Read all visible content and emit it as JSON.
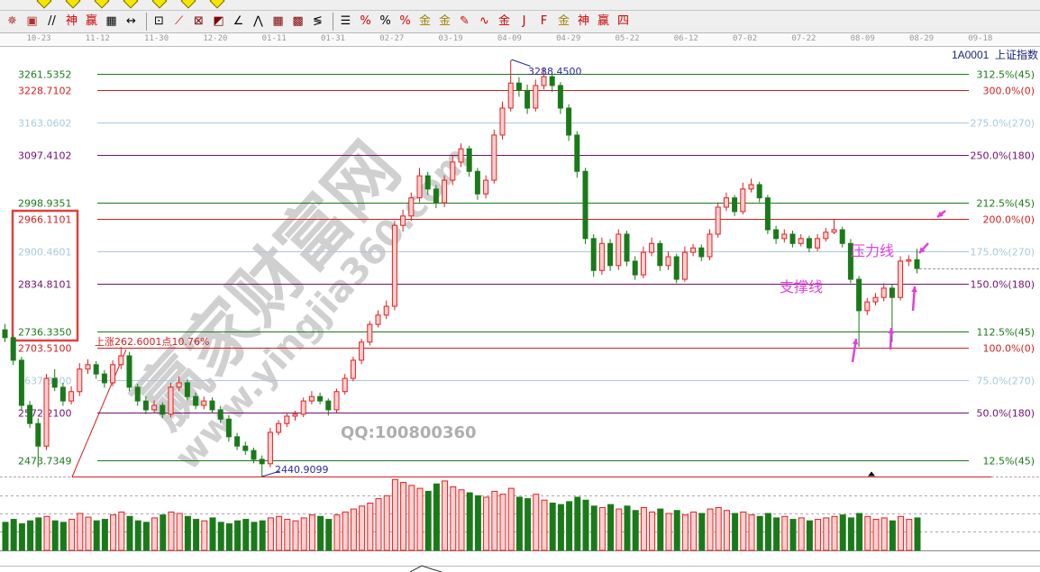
{
  "toolbar": {
    "row1_icons": [
      "pen-icon",
      "diamond-icon",
      "diamond-icon",
      "diamond-icon",
      "diamond-icon",
      "diamond-icon",
      "diamond-icon",
      "diamond-icon",
      "arc-icon",
      "vertical-line-icon",
      "cycle-icon",
      "text-p-icon",
      "box-icon",
      "calendar-icon",
      "chart-icon",
      "window-icon",
      "save-icon",
      "globe-icon",
      "print-icon"
    ],
    "row2_icons": [
      {
        "name": "target-icon",
        "glyph": "✵",
        "color": "#b03030"
      },
      {
        "name": "square-target-icon",
        "glyph": "▣",
        "color": "#b03030"
      },
      {
        "name": "parallel-lines-icon",
        "glyph": "//",
        "color": "#000000"
      },
      {
        "name": "shen-icon",
        "glyph": "神",
        "color": "#d00000"
      },
      {
        "name": "ying-icon",
        "glyph": "赢",
        "color": "#d00000"
      },
      {
        "name": "grid-bars-icon",
        "glyph": "▦",
        "color": "#000000"
      },
      {
        "name": "width-measure-icon",
        "glyph": "↔",
        "color": "#000000"
      },
      {
        "name": "sep",
        "glyph": "",
        "color": ""
      },
      {
        "name": "box-line-icon",
        "glyph": "⊡",
        "color": "#000000"
      },
      {
        "name": "fan-lines-icon",
        "glyph": "⟋",
        "color": "#d00000"
      },
      {
        "name": "gann-box-icon",
        "glyph": "⊠",
        "color": "#800000"
      },
      {
        "name": "gann-fan-icon",
        "glyph": "◩",
        "color": "#800000"
      },
      {
        "name": "angle-icon",
        "glyph": "∠",
        "color": "#000000"
      },
      {
        "name": "wave-icon",
        "glyph": "⋀",
        "color": "#000000"
      },
      {
        "name": "grid-icon",
        "glyph": "▦",
        "color": "#800000"
      },
      {
        "name": "grid-icon-2",
        "glyph": "▩",
        "color": "#800000"
      },
      {
        "name": "speed-lines-icon",
        "glyph": "≶",
        "color": "#000000"
      },
      {
        "name": "sep",
        "glyph": "",
        "color": ""
      },
      {
        "name": "fib-lines-icon",
        "glyph": "☰",
        "color": "#000000"
      },
      {
        "name": "percent-fan-icon",
        "glyph": "%",
        "color": "#d00000"
      },
      {
        "name": "percent-icon",
        "glyph": "%",
        "color": "#000000"
      },
      {
        "name": "percent-lines-icon",
        "glyph": "%",
        "color": "#d00000"
      },
      {
        "name": "gold-circle-icon",
        "glyph": "金",
        "color": "#a08000"
      },
      {
        "name": "gold-lines-icon",
        "glyph": "金",
        "color": "#a08000"
      },
      {
        "name": "pen-fan-icon",
        "glyph": "✎",
        "color": "#d00000"
      },
      {
        "name": "wave-lines-icon",
        "glyph": "∿",
        "color": "#d00000"
      },
      {
        "name": "gold-icon",
        "glyph": "金",
        "color": "#d00000"
      },
      {
        "name": "j-fan-icon",
        "glyph": "J",
        "color": "#d00000"
      },
      {
        "name": "f-fan-icon",
        "glyph": "F",
        "color": "#d00000"
      },
      {
        "name": "gold-fan-icon",
        "glyph": "金",
        "color": "#a08000"
      },
      {
        "name": "shen-fan-icon",
        "glyph": "神",
        "color": "#d00000"
      },
      {
        "name": "ying-fan-icon",
        "glyph": "赢",
        "color": "#d00000"
      },
      {
        "name": "si-fan-icon",
        "glyph": "四",
        "color": "#d00000"
      }
    ]
  },
  "date_axis": [
    "10-23",
    "11-12",
    "11-30",
    "12-20",
    "01-11",
    "01-31",
    "02-27",
    "03-19",
    "04-09",
    "04-29",
    "05-22",
    "06-12",
    "07-02",
    "07-22",
    "08-09",
    "08-29",
    "09-18"
  ],
  "symbol": {
    "code": "1A0001",
    "name": "上证指数"
  },
  "colors": {
    "up": "#e02020",
    "up_fill": "#ffd0d0",
    "down": "#1a7a1a",
    "green": "#1a7a1a",
    "red": "#d02020",
    "light": "#a8c8dc",
    "purple": "#701070",
    "annotation": "#e040e0",
    "peak_label": "#2a2aa0"
  },
  "chart_data": {
    "type": "candlestick",
    "title": "",
    "fib_levels": [
      {
        "price": "3261.5352",
        "value": 3261.5352,
        "label": "312.5%(45)",
        "color": "#1a7a1a"
      },
      {
        "price": "3228.7102",
        "value": 3228.7102,
        "label": "300.0%(0)",
        "color": "#d02020"
      },
      {
        "price": "3163.0602",
        "value": 3163.0602,
        "label": "275.0%(270)",
        "color": "#a8c8dc"
      },
      {
        "price": "3097.4102",
        "value": 3097.4102,
        "label": "250.0%(180)",
        "color": "#701070"
      },
      {
        "price": "2998.9351",
        "value": 2998.9351,
        "label": "212.5%(45)",
        "color": "#1a7a1a"
      },
      {
        "price": "2966.1101",
        "value": 2966.1101,
        "label": "200.0%(0)",
        "color": "#d02020"
      },
      {
        "price": "2900.4601",
        "value": 2900.4601,
        "label": "175.0%(270)",
        "color": "#a8c8dc"
      },
      {
        "price": "2834.8101",
        "value": 2834.8101,
        "label": "150.0%(180)",
        "color": "#701070"
      },
      {
        "price": "2736.3350",
        "value": 2736.335,
        "label": "112.5%(45)",
        "color": "#1a7a1a"
      },
      {
        "price": "2703.5100",
        "value": 2703.51,
        "label": "100.0%(0)",
        "color": "#d02020"
      },
      {
        "price": "2637.8600",
        "value": 2637.86,
        "label": "75.0%(270)",
        "color": "#a8c8dc"
      },
      {
        "price": "2572.2100",
        "value": 2572.21,
        "label": "50.0%(180)",
        "color": "#701070"
      },
      {
        "price": "2473.7349",
        "value": 2473.7349,
        "label": "12.5%(45)",
        "color": "#1a7a1a"
      }
    ],
    "base_level": 2440.9099,
    "low_label": "2440.9099",
    "high_label": "3288.4500",
    "high_value": 3288.45,
    "rise_annotation": "上涨262.6001点10.76%",
    "pressure_label": "压力线",
    "support_label": "支撑线",
    "last_price": 2865,
    "ohlc": [
      [
        2740,
        2752,
        2715,
        2724
      ],
      [
        2724,
        2730,
        2668,
        2678
      ],
      [
        2678,
        2685,
        2575,
        2586
      ],
      [
        2586,
        2595,
        2540,
        2549
      ],
      [
        2549,
        2560,
        2460,
        2503
      ],
      [
        2503,
        2650,
        2495,
        2641
      ],
      [
        2641,
        2660,
        2615,
        2623
      ],
      [
        2623,
        2632,
        2585,
        2595
      ],
      [
        2595,
        2625,
        2588,
        2614
      ],
      [
        2614,
        2672,
        2605,
        2660
      ],
      [
        2660,
        2680,
        2650,
        2669
      ],
      [
        2669,
        2676,
        2640,
        2650
      ],
      [
        2650,
        2658,
        2622,
        2632
      ],
      [
        2632,
        2678,
        2625,
        2669
      ],
      [
        2669,
        2705,
        2660,
        2687
      ],
      [
        2687,
        2695,
        2615,
        2623
      ],
      [
        2623,
        2630,
        2585,
        2595
      ],
      [
        2595,
        2604,
        2568,
        2577
      ],
      [
        2577,
        2596,
        2570,
        2586
      ],
      [
        2586,
        2592,
        2560,
        2568
      ],
      [
        2568,
        2632,
        2562,
        2623
      ],
      [
        2623,
        2645,
        2615,
        2632
      ],
      [
        2632,
        2640,
        2596,
        2604
      ],
      [
        2604,
        2612,
        2578,
        2586
      ],
      [
        2586,
        2604,
        2578,
        2595
      ],
      [
        2595,
        2602,
        2570,
        2577
      ],
      [
        2577,
        2585,
        2550,
        2558
      ],
      [
        2558,
        2566,
        2512,
        2522
      ],
      [
        2522,
        2530,
        2495,
        2503
      ],
      [
        2503,
        2512,
        2485,
        2494
      ],
      [
        2494,
        2500,
        2468,
        2476
      ],
      [
        2476,
        2484,
        2440.91,
        2467
      ],
      [
        2467,
        2540,
        2460,
        2531
      ],
      [
        2531,
        2556,
        2525,
        2549
      ],
      [
        2549,
        2570,
        2542,
        2564
      ],
      [
        2564,
        2575,
        2555,
        2568
      ],
      [
        2568,
        2602,
        2562,
        2595
      ],
      [
        2595,
        2615,
        2588,
        2604
      ],
      [
        2604,
        2612,
        2588,
        2595
      ],
      [
        2595,
        2600,
        2565,
        2577
      ],
      [
        2577,
        2620,
        2570,
        2614
      ],
      [
        2614,
        2650,
        2608,
        2641
      ],
      [
        2641,
        2685,
        2635,
        2678
      ],
      [
        2678,
        2722,
        2670,
        2715
      ],
      [
        2715,
        2758,
        2708,
        2751
      ],
      [
        2751,
        2780,
        2745,
        2770
      ],
      [
        2770,
        2800,
        2762,
        2788
      ],
      [
        2788,
        2962,
        2780,
        2953
      ],
      [
        2953,
        2985,
        2940,
        2972
      ],
      [
        2972,
        3020,
        2962,
        3009
      ],
      [
        3009,
        3070,
        3000,
        3054
      ],
      [
        3054,
        3062,
        3015,
        3027
      ],
      [
        3027,
        3035,
        2988,
        2999
      ],
      [
        2999,
        3055,
        2990,
        3045
      ],
      [
        3045,
        3095,
        3035,
        3082
      ],
      [
        3082,
        3120,
        3072,
        3109
      ],
      [
        3109,
        3115,
        3052,
        3063
      ],
      [
        3063,
        3070,
        3005,
        3017
      ],
      [
        3017,
        3055,
        3008,
        3045
      ],
      [
        3045,
        3148,
        3038,
        3137
      ],
      [
        3137,
        3205,
        3128,
        3192
      ],
      [
        3192,
        3288.45,
        3185,
        3243
      ],
      [
        3243,
        3255,
        3215,
        3228
      ],
      [
        3228,
        3240,
        3180,
        3192
      ],
      [
        3192,
        3250,
        3185,
        3238
      ],
      [
        3238,
        3275,
        3230,
        3256
      ],
      [
        3256,
        3262,
        3225,
        3238
      ],
      [
        3238,
        3245,
        3180,
        3192
      ],
      [
        3192,
        3200,
        3125,
        3137
      ],
      [
        3137,
        3145,
        3050,
        3063
      ],
      [
        3063,
        3070,
        2915,
        2926
      ],
      [
        2926,
        2935,
        2848,
        2861
      ],
      [
        2861,
        2928,
        2852,
        2916
      ],
      [
        2916,
        2925,
        2860,
        2871
      ],
      [
        2871,
        2945,
        2862,
        2935
      ],
      [
        2935,
        2942,
        2870,
        2880
      ],
      [
        2880,
        2890,
        2842,
        2852
      ],
      [
        2852,
        2910,
        2845,
        2898
      ],
      [
        2898,
        2928,
        2890,
        2916
      ],
      [
        2916,
        2922,
        2860,
        2871
      ],
      [
        2871,
        2900,
        2862,
        2889
      ],
      [
        2889,
        2895,
        2835,
        2843
      ],
      [
        2843,
        2910,
        2838,
        2898
      ],
      [
        2898,
        2915,
        2890,
        2907
      ],
      [
        2907,
        2914,
        2880,
        2889
      ],
      [
        2889,
        2945,
        2882,
        2935
      ],
      [
        2935,
        3000,
        2928,
        2990
      ],
      [
        2990,
        3020,
        2982,
        3009
      ],
      [
        3009,
        3015,
        2972,
        2981
      ],
      [
        2981,
        3040,
        2975,
        3027
      ],
      [
        3027,
        3048,
        3020,
        3036
      ],
      [
        3036,
        3042,
        3000,
        3009
      ],
      [
        3009,
        3015,
        2935,
        2944
      ],
      [
        2944,
        2952,
        2915,
        2926
      ],
      [
        2926,
        2945,
        2918,
        2935
      ],
      [
        2935,
        2942,
        2908,
        2916
      ],
      [
        2916,
        2935,
        2910,
        2926
      ],
      [
        2926,
        2932,
        2898,
        2907
      ],
      [
        2907,
        2935,
        2900,
        2926
      ],
      [
        2926,
        2948,
        2920,
        2939
      ],
      [
        2939,
        2965,
        2935,
        2944
      ],
      [
        2944,
        2950,
        2908,
        2916
      ],
      [
        2916,
        2925,
        2835,
        2843
      ],
      [
        2843,
        2850,
        2705,
        2779
      ],
      [
        2779,
        2805,
        2770,
        2797
      ],
      [
        2797,
        2815,
        2790,
        2806
      ],
      [
        2806,
        2835,
        2798,
        2825
      ],
      [
        2825,
        2832,
        2715,
        2806
      ],
      [
        2806,
        2890,
        2800,
        2880
      ],
      [
        2880,
        2892,
        2870,
        2883
      ],
      [
        2883,
        2905,
        2855,
        2865
      ]
    ],
    "volume_relative": [
      38,
      42,
      36,
      40,
      44,
      46,
      40,
      38,
      42,
      50,
      45,
      40,
      42,
      48,
      52,
      46,
      40,
      38,
      44,
      48,
      52,
      50,
      46,
      42,
      40,
      44,
      38,
      36,
      40,
      42,
      38,
      40,
      44,
      46,
      42,
      40,
      44,
      48,
      46,
      42,
      48,
      52,
      56,
      60,
      64,
      70,
      74,
      96,
      92,
      88,
      84,
      80,
      90,
      94,
      86,
      82,
      78,
      74,
      72,
      80,
      76,
      84,
      72,
      70,
      76,
      68,
      64,
      62,
      66,
      72,
      68,
      60,
      58,
      62,
      56,
      60,
      54,
      58,
      52,
      56,
      50,
      54,
      48,
      52,
      50,
      56,
      58,
      54,
      50,
      52,
      48,
      46,
      50,
      44,
      46,
      42,
      44,
      40,
      42,
      44,
      46,
      48,
      44,
      50,
      46,
      42,
      44,
      40,
      46,
      42,
      44
    ]
  },
  "watermark": {
    "brand": "赢家财富网",
    "url": "www.yingjia360.com",
    "qq": "QQ:100800360"
  }
}
